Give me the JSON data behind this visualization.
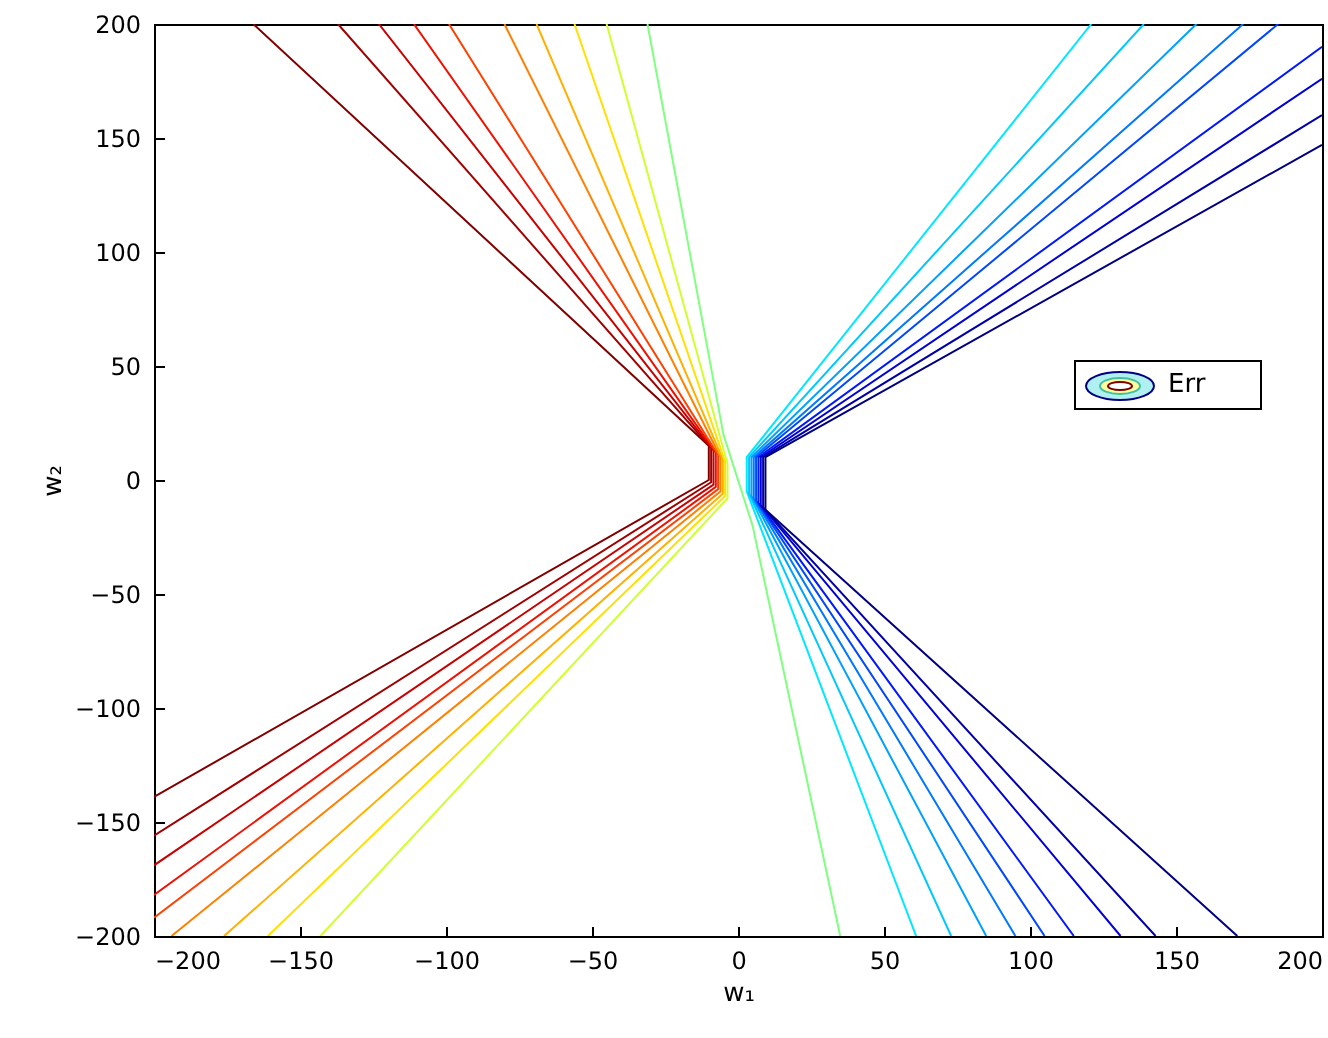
{
  "chart_data": {
    "type": "line",
    "xlabel": "w₁",
    "ylabel": "w₂",
    "xlim": [
      -200,
      200
    ],
    "ylim": [
      -200,
      200
    ],
    "xticks": [
      -200,
      -150,
      -100,
      -50,
      0,
      50,
      100,
      150,
      200
    ],
    "yticks": [
      -200,
      -150,
      -100,
      -50,
      0,
      50,
      100,
      150,
      200
    ],
    "annotations": [
      "Err"
    ],
    "marker": "none",
    "series": [
      {
        "color": "#800000",
        "x": [
          -166,
          -10,
          -10,
          -200
        ],
        "values": [
          200,
          15,
          0,
          -139
        ]
      },
      {
        "color": "#a00000",
        "x": [
          -137,
          -9.2,
          -9.2,
          -200
        ],
        "values": [
          200,
          14,
          -1,
          -156
        ]
      },
      {
        "color": "#c80000",
        "x": [
          -123,
          -8.4,
          -8.4,
          -200
        ],
        "values": [
          200,
          13,
          -2,
          -169
        ]
      },
      {
        "color": "#f01000",
        "x": [
          -111,
          -7.6,
          -7.6,
          -200
        ],
        "values": [
          200,
          12,
          -3,
          -182
        ]
      },
      {
        "color": "#ff4000",
        "x": [
          -99,
          -6.8,
          -6.8,
          -200
        ],
        "values": [
          200,
          11,
          -4,
          -192
        ]
      },
      {
        "color": "#ff8000",
        "x": [
          -80,
          -6,
          -6,
          -194
        ],
        "values": [
          200,
          10,
          -5,
          -200
        ]
      },
      {
        "color": "#ffb000",
        "x": [
          -69,
          -5.2,
          -5.2,
          -176
        ],
        "values": [
          200,
          9,
          -6,
          -200
        ]
      },
      {
        "color": "#ffe000",
        "x": [
          -56,
          -4.4,
          -4.4,
          -161
        ],
        "values": [
          200,
          8,
          -7,
          -200
        ]
      },
      {
        "color": "#d0ff30",
        "x": [
          -45,
          -3.6,
          -3.6,
          -143
        ],
        "values": [
          200,
          7,
          -8,
          -200
        ]
      },
      {
        "color": "#80ff80",
        "x": [
          -31,
          -5,
          5,
          35
        ],
        "values": [
          200,
          20,
          -20,
          -200
        ]
      },
      {
        "color": "#00e8ff",
        "x": [
          121,
          3,
          3,
          61
        ],
        "values": [
          200,
          10,
          -5,
          -200
        ]
      },
      {
        "color": "#00c8ff",
        "x": [
          139,
          3.8,
          3.8,
          73
        ],
        "values": [
          200,
          10,
          -6,
          -200
        ]
      },
      {
        "color": "#00a0ff",
        "x": [
          157,
          4.6,
          4.6,
          85
        ],
        "values": [
          200,
          10,
          -7,
          -200
        ]
      },
      {
        "color": "#0078ff",
        "x": [
          173,
          5.4,
          5.4,
          95
        ],
        "values": [
          200,
          10,
          -8,
          -200
        ]
      },
      {
        "color": "#0048ff",
        "x": [
          185,
          6.2,
          6.2,
          105
        ],
        "values": [
          200,
          10,
          -9,
          -200
        ]
      },
      {
        "color": "#0018ff",
        "x": [
          200,
          7,
          7,
          115
        ],
        "values": [
          190,
          10,
          -10,
          -200
        ]
      },
      {
        "color": "#0000d8",
        "x": [
          200,
          7.8,
          7.8,
          131
        ],
        "values": [
          176,
          10,
          -11,
          -200
        ]
      },
      {
        "color": "#0000a8",
        "x": [
          200,
          8.6,
          8.6,
          143
        ],
        "values": [
          160,
          10,
          -12,
          -200
        ]
      },
      {
        "color": "#000080",
        "x": [
          200,
          9.4,
          9.4,
          171
        ],
        "values": [
          147,
          10,
          -13,
          -200
        ]
      }
    ]
  }
}
